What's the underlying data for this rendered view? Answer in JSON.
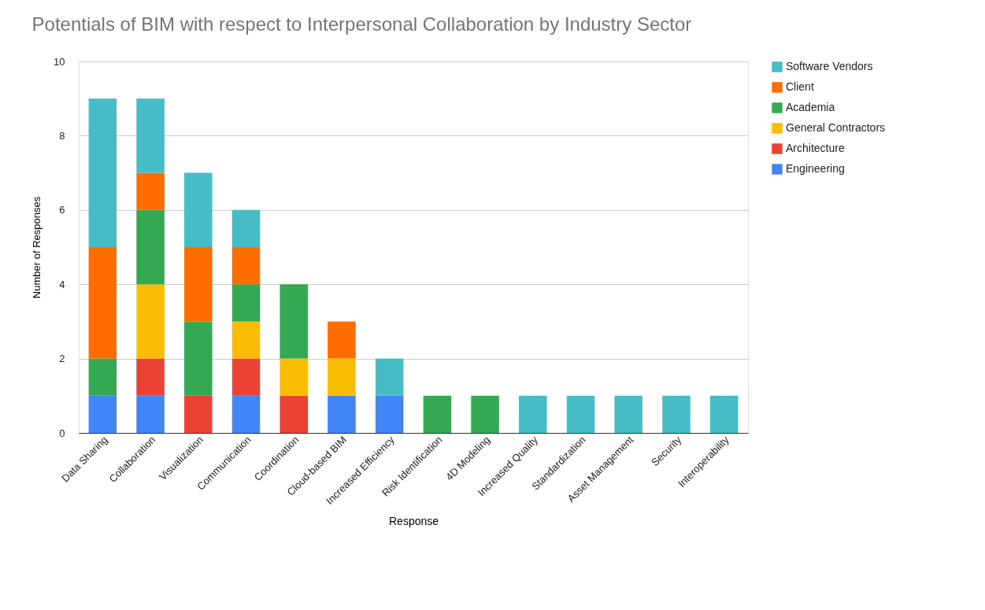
{
  "chart_data": {
    "type": "bar",
    "stacked": true,
    "title": "Potentials of BIM with respect to Interpersonal Collaboration by Industry Sector",
    "xlabel": "Response",
    "ylabel": "Number of Responses",
    "categories": [
      "Data Sharing",
      "Collaboration",
      "Visualization",
      "Communication",
      "Coordination",
      "Cloud-based BIM",
      "Increased Efficiency",
      "Risk Identification",
      "4D Modeling",
      "Increased Quality",
      "Standardization",
      "Asset Management",
      "Security",
      "Interoperability"
    ],
    "series": [
      {
        "name": "Engineering",
        "color": "#4285f4",
        "values": [
          1,
          1,
          0,
          1,
          0,
          1,
          1,
          0,
          0,
          0,
          0,
          0,
          0,
          0
        ]
      },
      {
        "name": "Architecture",
        "color": "#ea4335",
        "values": [
          0,
          1,
          1,
          1,
          1,
          0,
          0,
          0,
          0,
          0,
          0,
          0,
          0,
          0
        ]
      },
      {
        "name": "General Contractors",
        "color": "#fbbc04",
        "values": [
          0,
          2,
          0,
          1,
          1,
          1,
          0,
          0,
          0,
          0,
          0,
          0,
          0,
          0
        ]
      },
      {
        "name": "Academia",
        "color": "#34a853",
        "values": [
          1,
          2,
          2,
          1,
          2,
          0,
          0,
          1,
          1,
          0,
          0,
          0,
          0,
          0
        ]
      },
      {
        "name": "Client",
        "color": "#ff6d01",
        "values": [
          3,
          1,
          2,
          1,
          0,
          1,
          0,
          0,
          0,
          0,
          0,
          0,
          0,
          0
        ]
      },
      {
        "name": "Software Vendors",
        "color": "#46bdc6",
        "values": [
          4,
          2,
          2,
          1,
          0,
          0,
          1,
          0,
          0,
          1,
          1,
          1,
          1,
          1
        ]
      }
    ],
    "ylim": [
      0,
      10
    ],
    "yticks": [
      0,
      2,
      4,
      6,
      8,
      10
    ],
    "grid": "y",
    "legend": "top right"
  }
}
